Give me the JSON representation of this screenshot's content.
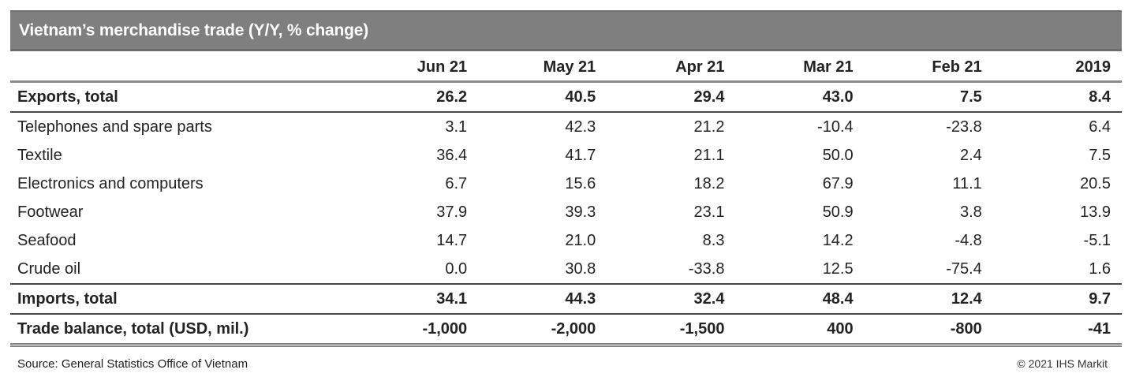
{
  "title_bar": {
    "title": "Vietnam’s merchandise trade (Y/Y, % change)"
  },
  "chart_data": {
    "type": "table",
    "title": "Vietnam’s merchandise trade (Y/Y, % change)",
    "columns": [
      "Jun 21",
      "May 21",
      "Apr 21",
      "Mar 21",
      "Feb 21",
      "2019"
    ],
    "rows": [
      {
        "label": "Exports, total",
        "emphasis": true,
        "values": [
          "26.2",
          "40.5",
          "29.4",
          "43.0",
          "7.5",
          "8.4"
        ]
      },
      {
        "label": "Telephones and spare parts",
        "emphasis": false,
        "values": [
          "3.1",
          "42.3",
          "21.2",
          "-10.4",
          "-23.8",
          "6.4"
        ]
      },
      {
        "label": "Textile",
        "emphasis": false,
        "values": [
          "36.4",
          "41.7",
          "21.1",
          "50.0",
          "2.4",
          "7.5"
        ]
      },
      {
        "label": "Electronics and computers",
        "emphasis": false,
        "values": [
          "6.7",
          "15.6",
          "18.2",
          "67.9",
          "11.1",
          "20.5"
        ]
      },
      {
        "label": "Footwear",
        "emphasis": false,
        "values": [
          "37.9",
          "39.3",
          "23.1",
          "50.9",
          "3.8",
          "13.9"
        ]
      },
      {
        "label": "Seafood",
        "emphasis": false,
        "values": [
          "14.7",
          "21.0",
          "8.3",
          "14.2",
          "-4.8",
          "-5.1"
        ]
      },
      {
        "label": "Crude oil",
        "emphasis": false,
        "values": [
          "0.0",
          "30.8",
          "-33.8",
          "12.5",
          "-75.4",
          "1.6"
        ]
      },
      {
        "label": "Imports, total",
        "emphasis": true,
        "values": [
          "34.1",
          "44.3",
          "32.4",
          "48.4",
          "12.4",
          "9.7"
        ]
      },
      {
        "label": "Trade balance, total (USD, mil.)",
        "emphasis": true,
        "values": [
          "-1,000",
          "-2,000",
          "-1,500",
          "400",
          "-800",
          "-41"
        ]
      }
    ]
  },
  "footer": {
    "source": "Source:  General Statistics Office of Vietnam",
    "copyright": "© 2021 IHS Markit"
  },
  "colors": {
    "title_bar_bg": "#7f7f7f",
    "title_text": "#ffffff",
    "body_text": "#232323",
    "rule_gray": "#8c8c8c",
    "rule_dark": "#474747"
  }
}
